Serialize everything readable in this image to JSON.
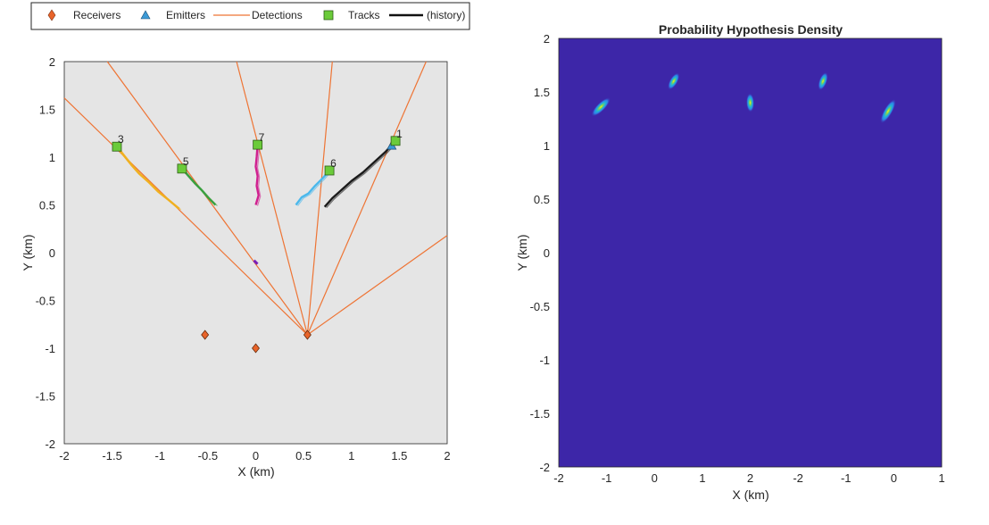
{
  "legend": {
    "entries": [
      {
        "label": "Receivers",
        "marker": "diamond",
        "color": "#e8642a"
      },
      {
        "label": "Emitters",
        "marker": "triangle",
        "color": "#3c9ad6"
      },
      {
        "label": "Detections",
        "marker": "line",
        "color": "#ee7434"
      },
      {
        "label": "Tracks",
        "marker": "square",
        "color": "#6bcb3a"
      },
      {
        "label": "(history)",
        "marker": "thickline",
        "color": "#111111"
      }
    ]
  },
  "chart_data": [
    {
      "type": "scatter",
      "title": "",
      "xlabel": "X (km)",
      "ylabel": "Y (km)",
      "xlim": [
        -2,
        2
      ],
      "ylim": [
        -2,
        2
      ],
      "xticks": [
        "-2",
        "-1.5",
        "-1",
        "-0.5",
        "0",
        "0.5",
        "1",
        "1.5",
        "2"
      ],
      "yticks": [
        "2",
        "1.5",
        "1",
        "0.5",
        "0",
        "-0.5",
        "-1",
        "-1.5",
        "-2"
      ],
      "background": "#e5e5e5",
      "grid": false,
      "receivers": [
        {
          "x": -0.53,
          "y": -0.86
        },
        {
          "x": 0.0,
          "y": -1.0
        },
        {
          "x": 0.54,
          "y": -0.86
        }
      ],
      "emitters": [
        {
          "x": 1.42,
          "y": 1.12
        }
      ],
      "detections": {
        "origin": {
          "x": 0.54,
          "y": -0.86
        },
        "endpoints": [
          {
            "x": -2.0,
            "y": 1.62
          },
          {
            "x": -1.55,
            "y": 2.0
          },
          {
            "x": -0.2,
            "y": 2.0
          },
          {
            "x": 0.8,
            "y": 2.0
          },
          {
            "x": 1.78,
            "y": 2.0
          },
          {
            "x": 2.0,
            "y": 0.18
          }
        ]
      },
      "tracks": [
        {
          "id": "3",
          "x": -1.45,
          "y": 1.11,
          "color": "#f0b020",
          "history": [
            [
              -1.45,
              1.11
            ],
            [
              -1.38,
              1.02
            ],
            [
              -1.3,
              0.92
            ],
            [
              -1.22,
              0.83
            ],
            [
              -1.12,
              0.74
            ],
            [
              -1.02,
              0.64
            ],
            [
              -0.92,
              0.56
            ],
            [
              -0.8,
              0.46
            ]
          ]
        },
        {
          "id": "5",
          "x": -0.77,
          "y": 0.88,
          "color": "#3aa040",
          "history": [
            [
              -0.77,
              0.88
            ],
            [
              -0.7,
              0.8
            ],
            [
              -0.63,
              0.72
            ],
            [
              -0.57,
              0.66
            ],
            [
              -0.5,
              0.58
            ],
            [
              -0.42,
              0.5
            ]
          ]
        },
        {
          "id": "7",
          "x": 0.02,
          "y": 1.13,
          "color": "#d0208f",
          "history": [
            [
              0.02,
              1.13
            ],
            [
              0.01,
              1.0
            ],
            [
              0.0,
              0.9
            ],
            [
              0.02,
              0.8
            ],
            [
              0.01,
              0.7
            ],
            [
              0.03,
              0.6
            ],
            [
              0.0,
              0.5
            ]
          ]
        },
        {
          "id": "6",
          "x": 0.77,
          "y": 0.86,
          "color": "#4ab8ec",
          "history": [
            [
              0.77,
              0.86
            ],
            [
              0.7,
              0.78
            ],
            [
              0.62,
              0.7
            ],
            [
              0.55,
              0.62
            ],
            [
              0.48,
              0.58
            ],
            [
              0.42,
              0.5
            ]
          ]
        },
        {
          "id": "1",
          "x": 1.46,
          "y": 1.17,
          "color": "#1a1a1a",
          "history": [
            [
              1.46,
              1.17
            ],
            [
              1.36,
              1.06
            ],
            [
              1.24,
              0.95
            ],
            [
              1.12,
              0.84
            ],
            [
              1.0,
              0.75
            ],
            [
              0.9,
              0.66
            ],
            [
              0.8,
              0.57
            ],
            [
              0.72,
              0.48
            ]
          ]
        }
      ],
      "stray_points": [
        {
          "x": 0.0,
          "y": -0.1,
          "color": "#7a1fb8"
        }
      ]
    },
    {
      "type": "heatmap",
      "title": "Probability Hypothesis Density",
      "xlabel": "X (km)",
      "ylabel": "Y (km)",
      "xticks": [
        "-2",
        "-1",
        "0",
        "1",
        "2",
        "-2",
        "-1",
        "0",
        "1"
      ],
      "yticks": [
        "2",
        "1.5",
        "1",
        "0.5",
        "0",
        "-0.5",
        "-1",
        "-1.5",
        "-2"
      ],
      "background": "#3d26a8",
      "blobs": [
        {
          "x": 0.11,
          "y": 0.84,
          "angle": -45,
          "rx": 12,
          "ry": 3.2
        },
        {
          "x": 0.3,
          "y": 0.9,
          "angle": -60,
          "rx": 9,
          "ry": 3
        },
        {
          "x": 0.5,
          "y": 0.85,
          "angle": 88,
          "rx": 9,
          "ry": 3
        },
        {
          "x": 0.69,
          "y": 0.9,
          "angle": 110,
          "rx": 9,
          "ry": 3
        },
        {
          "x": 0.86,
          "y": 0.83,
          "angle": 120,
          "rx": 13,
          "ry": 3.2
        }
      ]
    }
  ]
}
